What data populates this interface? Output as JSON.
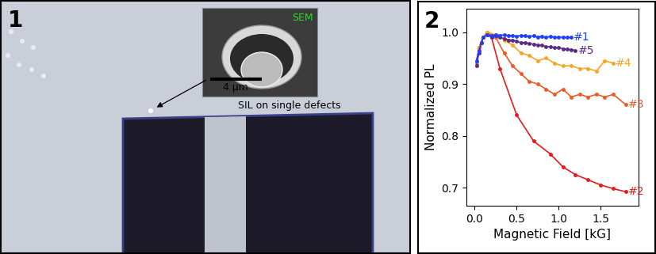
{
  "image_panel": {
    "panel_label": "1",
    "inset_label": "SEM",
    "scale_bar_label": "4 μm",
    "annotation": "SIL on single defects"
  },
  "chart_data": {
    "type": "line",
    "panel_label": "2",
    "x_label": "Magnetic Field [kG]",
    "y_label": "Normalized PL",
    "xlim": [
      -0.1,
      1.95
    ],
    "xticks": [
      0.0,
      0.5,
      1.0,
      1.5
    ],
    "ylim": [
      0.665,
      1.045
    ],
    "yticks": [
      0.7,
      0.8,
      0.9,
      1.0
    ],
    "marker": "o",
    "series": [
      {
        "name": "#2",
        "color": "#e8191c",
        "x": [
          0.02,
          0.05,
          0.1,
          0.15,
          0.2,
          0.3,
          0.5,
          0.7,
          0.9,
          1.05,
          1.2,
          1.35,
          1.5,
          1.65,
          1.8
        ],
        "values": [
          0.94,
          0.97,
          0.99,
          1.0,
          0.99,
          0.93,
          0.84,
          0.79,
          0.765,
          0.74,
          0.725,
          0.715,
          0.705,
          0.698,
          0.692
        ]
      },
      {
        "name": "#3",
        "color": "#ee5a24",
        "x": [
          0.02,
          0.05,
          0.1,
          0.15,
          0.25,
          0.35,
          0.45,
          0.55,
          0.65,
          0.75,
          0.85,
          0.95,
          1.05,
          1.15,
          1.25,
          1.35,
          1.45,
          1.55,
          1.65,
          1.8
        ],
        "values": [
          0.94,
          0.97,
          0.99,
          1.0,
          0.99,
          0.96,
          0.935,
          0.92,
          0.905,
          0.9,
          0.89,
          0.88,
          0.89,
          0.875,
          0.88,
          0.875,
          0.88,
          0.875,
          0.88,
          0.86
        ]
      },
      {
        "name": "#4",
        "color": "#f5a623",
        "x": [
          0.02,
          0.05,
          0.1,
          0.15,
          0.25,
          0.35,
          0.45,
          0.55,
          0.65,
          0.75,
          0.85,
          0.95,
          1.05,
          1.15,
          1.25,
          1.35,
          1.45,
          1.55,
          1.65
        ],
        "values": [
          0.94,
          0.97,
          0.99,
          1.0,
          0.995,
          0.985,
          0.975,
          0.96,
          0.955,
          0.945,
          0.95,
          0.94,
          0.935,
          0.935,
          0.93,
          0.93,
          0.925,
          0.945,
          0.94
        ]
      },
      {
        "name": "#5",
        "color": "#5b2a86",
        "x": [
          0.02,
          0.05,
          0.08,
          0.1,
          0.15,
          0.2,
          0.25,
          0.3,
          0.35,
          0.4,
          0.45,
          0.5,
          0.55,
          0.6,
          0.65,
          0.7,
          0.75,
          0.8,
          0.85,
          0.9,
          0.95,
          1.0,
          1.05,
          1.1,
          1.15,
          1.2
        ],
        "values": [
          0.935,
          0.96,
          0.98,
          0.99,
          0.995,
          0.99,
          0.993,
          0.99,
          0.988,
          0.985,
          0.985,
          0.982,
          0.98,
          0.98,
          0.978,
          0.977,
          0.975,
          0.975,
          0.972,
          0.972,
          0.97,
          0.97,
          0.968,
          0.967,
          0.966,
          0.965
        ]
      },
      {
        "name": "#1",
        "color": "#1f3fff",
        "x": [
          0.02,
          0.05,
          0.08,
          0.1,
          0.15,
          0.2,
          0.25,
          0.3,
          0.35,
          0.4,
          0.45,
          0.5,
          0.55,
          0.6,
          0.65,
          0.7,
          0.75,
          0.8,
          0.85,
          0.9,
          0.95,
          1.0,
          1.05,
          1.1,
          1.15
        ],
        "values": [
          0.945,
          0.965,
          0.98,
          0.99,
          0.995,
          0.993,
          0.995,
          0.994,
          0.995,
          0.993,
          0.994,
          0.992,
          0.994,
          0.993,
          0.992,
          0.993,
          0.991,
          0.992,
          0.99,
          0.992,
          0.99,
          0.991,
          0.99,
          0.99,
          0.99
        ]
      }
    ]
  }
}
